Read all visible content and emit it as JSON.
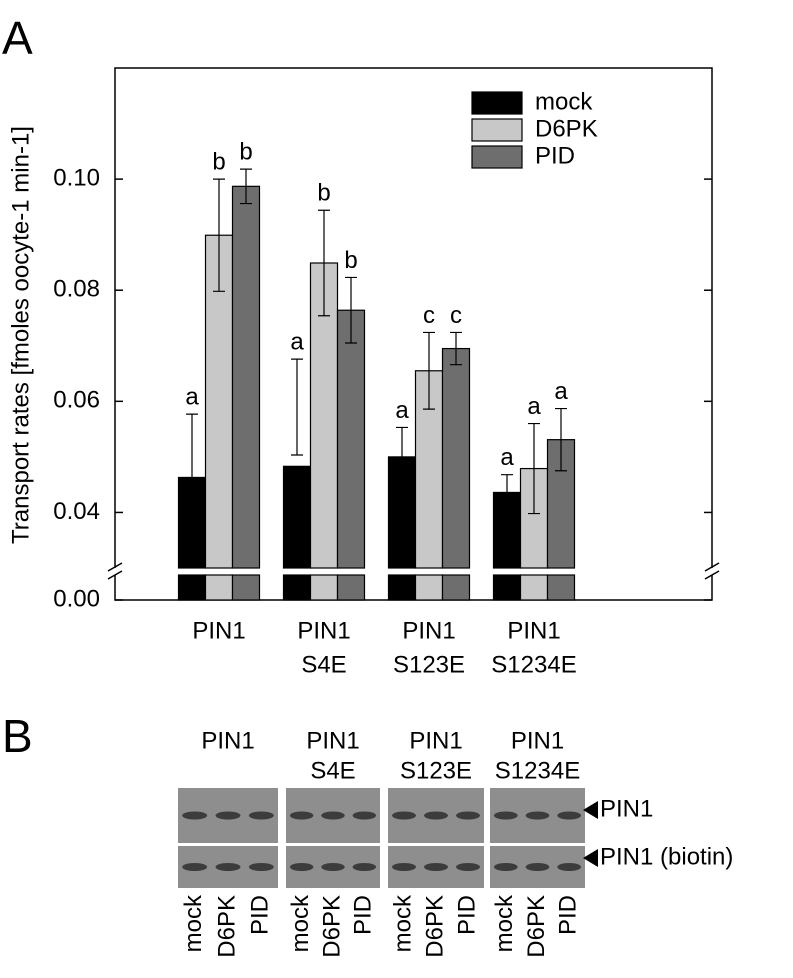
{
  "panel_labels": [
    "A",
    "B"
  ],
  "chart_data": {
    "type": "bar",
    "y_label": "Transport rates [fmoles oocyte-1 min-1]",
    "categories": [
      [
        "PIN1"
      ],
      [
        "PIN1",
        "S4E"
      ],
      [
        "PIN1",
        "S123E"
      ],
      [
        "PIN1",
        "S1234E"
      ]
    ],
    "series": [
      {
        "name": "mock",
        "color": "#000000",
        "values": [
          0.0463,
          0.0483,
          0.05,
          0.0436
        ],
        "errors": [
          0.0114,
          0.0193,
          0.0053,
          0.0032
        ],
        "annotations": [
          "a",
          "a",
          "a",
          "a"
        ]
      },
      {
        "name": "D6PK",
        "color": "#c8c8c8",
        "values": [
          0.0899,
          0.0849,
          0.0655,
          0.0479
        ],
        "errors": [
          0.0101,
          0.0095,
          0.0069,
          0.0081
        ],
        "annotations": [
          "b",
          "b",
          "c",
          "a"
        ]
      },
      {
        "name": "PID",
        "color": "#6e6e6e",
        "values": [
          0.0987,
          0.0764,
          0.0695,
          0.0531
        ],
        "errors": [
          0.0031,
          0.0059,
          0.0029,
          0.0056
        ],
        "annotations": [
          "b",
          "b",
          "c",
          "a"
        ]
      }
    ],
    "ylim": [
      0,
      0.12
    ],
    "axis_break": [
      0.005,
      0.03
    ],
    "yticks": [
      {
        "value": 0,
        "label": "0.00"
      },
      0.04,
      0.06,
      0.08,
      {
        "value": 0.1,
        "label": "0.10"
      }
    ],
    "grid": false,
    "legend": "upper right"
  },
  "blot": {
    "groups": [
      [
        "PIN1"
      ],
      [
        "PIN1",
        "S4E"
      ],
      [
        "PIN1",
        "S123E"
      ],
      [
        "PIN1",
        "S1234E"
      ]
    ],
    "rows": [
      "PIN1",
      "PIN1 (biotin)"
    ],
    "lanes": [
      "mock",
      "D6PK",
      "PID"
    ]
  }
}
